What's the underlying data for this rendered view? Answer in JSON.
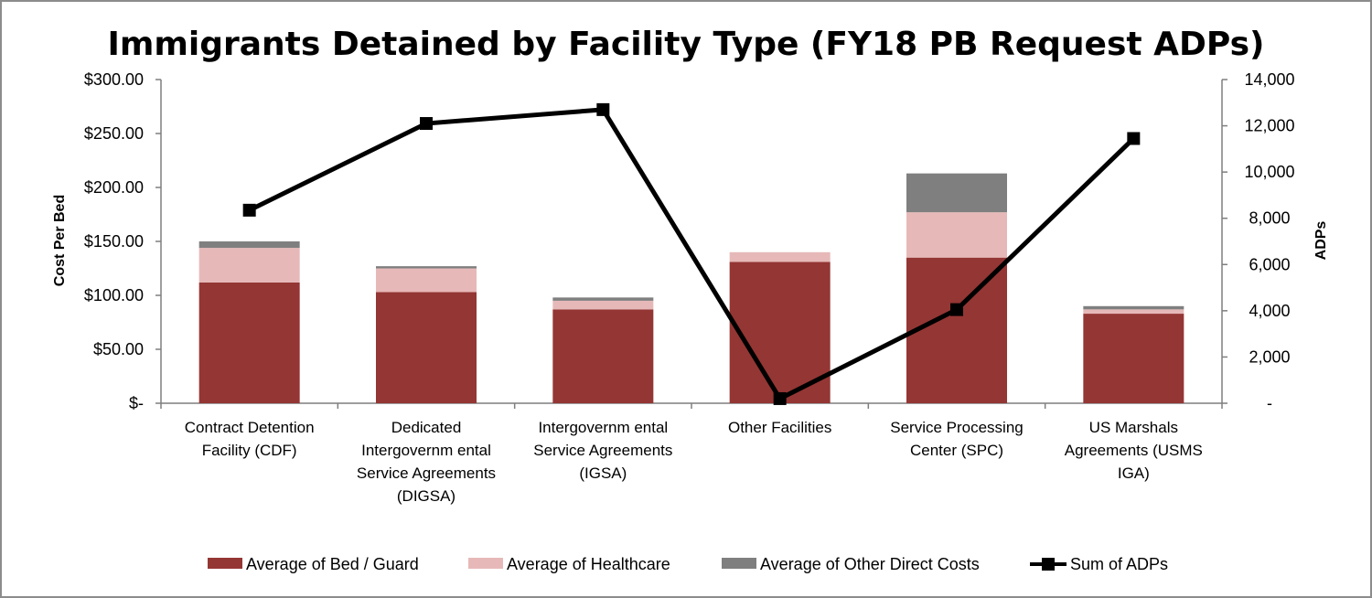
{
  "chart_data": {
    "type": "bar",
    "title": "Immigrants Detained by Facility Type (FY18 PB Request ADPs)",
    "ylabel_left": "Cost Per Bed",
    "ylabel_right": "ADPs",
    "ylim_left": [
      0,
      300
    ],
    "ylim_right": [
      0,
      14000
    ],
    "left_ticks": [
      {
        "value": 0,
        "label": "$-"
      },
      {
        "value": 50,
        "label": "$50.00"
      },
      {
        "value": 100,
        "label": "$100.00"
      },
      {
        "value": 150,
        "label": "$150.00"
      },
      {
        "value": 200,
        "label": "$200.00"
      },
      {
        "value": 250,
        "label": "$250.00"
      },
      {
        "value": 300,
        "label": "$300.00"
      }
    ],
    "right_ticks": [
      {
        "value": 0,
        "label": "-"
      },
      {
        "value": 2000,
        "label": "2,000"
      },
      {
        "value": 4000,
        "label": "4,000"
      },
      {
        "value": 6000,
        "label": "6,000"
      },
      {
        "value": 8000,
        "label": "8,000"
      },
      {
        "value": 10000,
        "label": "10,000"
      },
      {
        "value": 12000,
        "label": "12,000"
      },
      {
        "value": 14000,
        "label": "14,000"
      }
    ],
    "categories": [
      [
        "Contract Detention",
        "Facility (CDF)"
      ],
      [
        "Dedicated",
        "Intergovernm ental",
        "Service Agreements",
        "(DIGSA)"
      ],
      [
        "Intergovernm ental",
        "Service Agreements",
        "(IGSA)"
      ],
      [
        "Other Facilities"
      ],
      [
        "Service Processing",
        "Center (SPC)"
      ],
      [
        "US Marshals",
        "Agreements (USMS",
        "IGA)"
      ]
    ],
    "series": [
      {
        "name": "Average of Bed / Guard",
        "type": "bar",
        "axis": "left",
        "color": "#943634",
        "values": [
          112,
          103,
          87,
          131,
          135,
          83
        ]
      },
      {
        "name": "Average of Healthcare",
        "type": "bar",
        "axis": "left",
        "color": "#e6b9b8",
        "values": [
          32,
          22,
          8,
          9,
          42,
          4
        ]
      },
      {
        "name": "Average of Other Direct Costs",
        "type": "bar",
        "axis": "left",
        "color": "#7f7f7f",
        "values": [
          6,
          2,
          3,
          0,
          36,
          3
        ]
      },
      {
        "name": "Sum of ADPs",
        "type": "line",
        "axis": "right",
        "color": "#000000",
        "values": [
          8350,
          12100,
          12700,
          200,
          4050,
          11450
        ]
      }
    ],
    "legend_position": "bottom",
    "grid": false
  }
}
